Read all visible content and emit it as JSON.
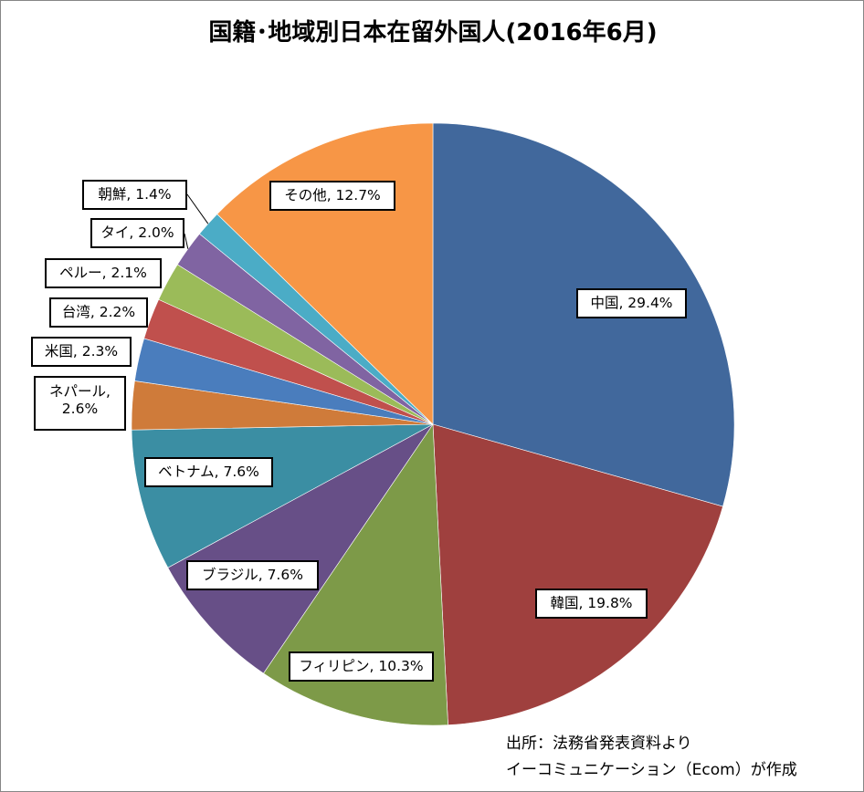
{
  "title": "国籍･地域別日本在留外国人(2016年6月)",
  "source": {
    "line1": "出所：法務省発表資料より",
    "line2": "イーコミュニケーション（Ecom）が作成"
  },
  "chart_data": {
    "type": "pie",
    "title": "国籍･地域別日本在留外国人(2016年6月)",
    "start": "12 o'clock, clockwise",
    "unit": "%",
    "slices": [
      {
        "label": "中国",
        "value": 29.4,
        "display": "中国, 29.4%",
        "color": "#41689c"
      },
      {
        "label": "韓国",
        "value": 19.8,
        "display": "韓国, 19.8%",
        "color": "#9f403e"
      },
      {
        "label": "フィリピン",
        "value": 10.3,
        "display": "フィリピン, 10.3%",
        "color": "#7d9a48"
      },
      {
        "label": "ブラジル",
        "value": 7.6,
        "display": "ブラジル, 7.6%",
        "color": "#674f87"
      },
      {
        "label": "ベトナム",
        "value": 7.6,
        "display": "ベトナム, 7.6%",
        "color": "#3b8ea3"
      },
      {
        "label": "ネパール",
        "value": 2.6,
        "display": "ネパール, 2.6%",
        "color": "#cf7b3a"
      },
      {
        "label": "米国",
        "value": 2.3,
        "display": "米国, 2.3%",
        "color": "#4a7dbd"
      },
      {
        "label": "台湾",
        "value": 2.2,
        "display": "台湾, 2.2%",
        "color": "#c0504d"
      },
      {
        "label": "ペルー",
        "value": 2.1,
        "display": "ペルー, 2.1%",
        "color": "#9bbb59"
      },
      {
        "label": "タイ",
        "value": 2.0,
        "display": "タイ, 2.0%",
        "color": "#8064a2"
      },
      {
        "label": "朝鮮",
        "value": 1.4,
        "display": "朝鮮, 1.4%",
        "color": "#4bacc6"
      },
      {
        "label": "その他",
        "value": 12.7,
        "display": "その他, 12.7%",
        "color": "#f79646"
      }
    ]
  }
}
